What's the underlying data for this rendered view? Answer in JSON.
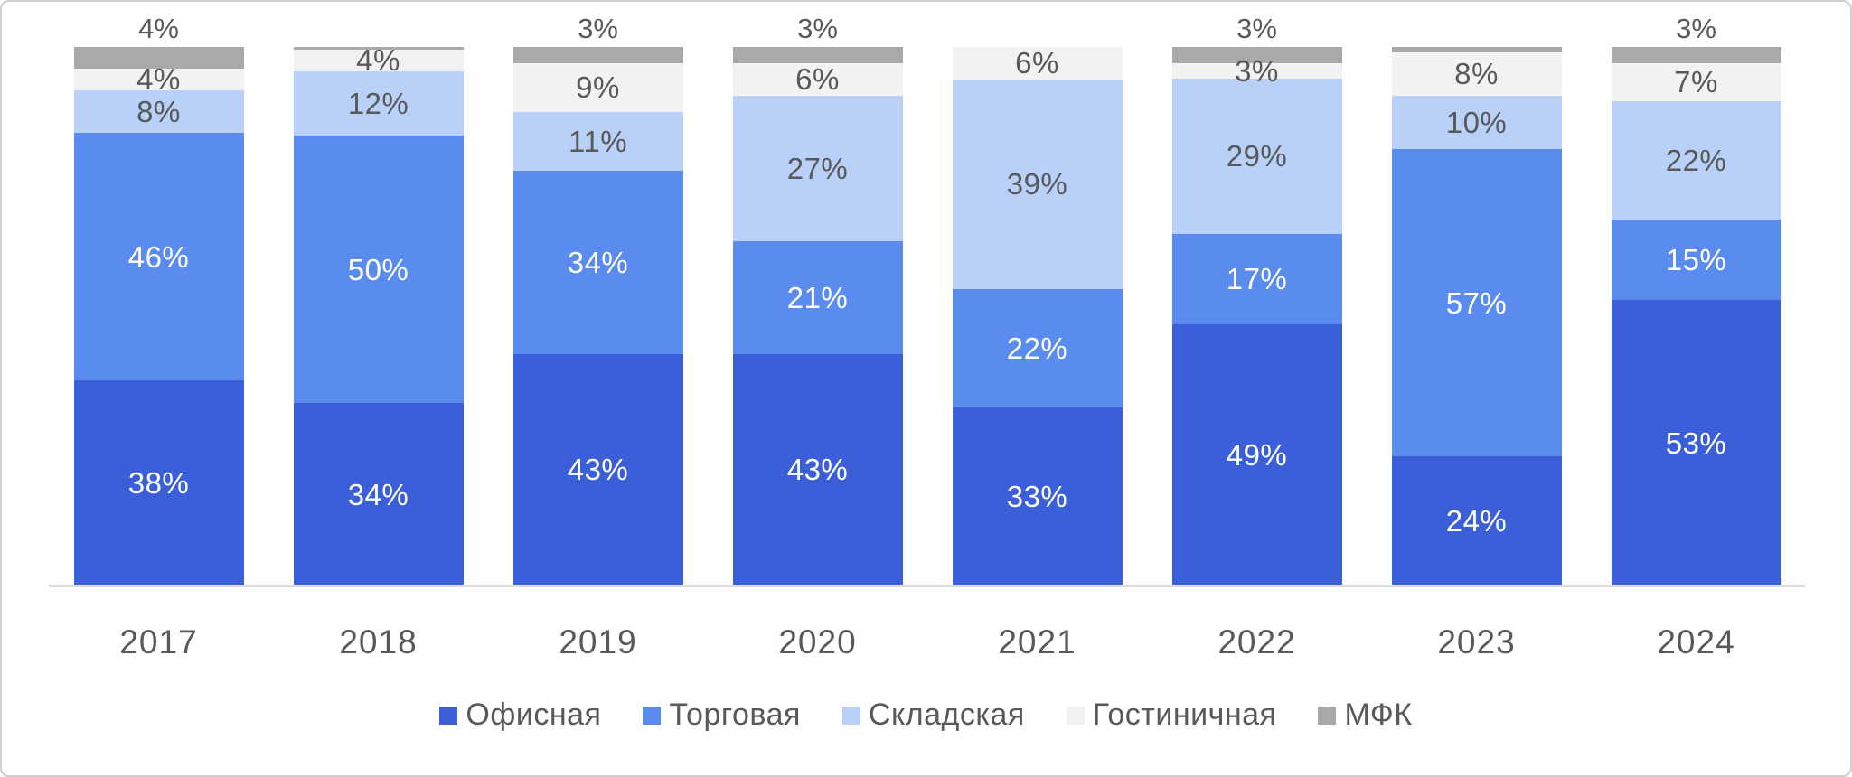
{
  "chart_data": {
    "type": "bar",
    "variant": "stacked-100-percent",
    "title": "",
    "xlabel": "",
    "ylabel": "",
    "categories": [
      "2017",
      "2018",
      "2019",
      "2020",
      "2021",
      "2022",
      "2023",
      "2024"
    ],
    "series": [
      {
        "name": "Офисная",
        "color": "#3B5FD9",
        "label_color": "#FFFFFF",
        "values": [
          38,
          34,
          43,
          43,
          33,
          49,
          24,
          53
        ]
      },
      {
        "name": "Торговая",
        "color": "#5A8CF0",
        "label_color": "#FFFFFF",
        "values": [
          46,
          50,
          34,
          21,
          22,
          17,
          57,
          15
        ]
      },
      {
        "name": "Складская",
        "color": "#B9D1F8",
        "label_color": "#595959",
        "values": [
          8,
          12,
          11,
          27,
          39,
          29,
          10,
          22
        ]
      },
      {
        "name": "Гостиничная",
        "color": "#F2F2F2",
        "label_color": "#595959",
        "values": [
          4,
          4,
          9,
          6,
          6,
          3,
          8,
          7
        ]
      },
      {
        "name": "МФК",
        "color": "#A9A9A9",
        "label_color": "#595959",
        "values": [
          4,
          0.5,
          3,
          3,
          0,
          3,
          1,
          3
        ]
      }
    ],
    "value_suffix": "%",
    "data_label_min_value": 2,
    "top_series_labels_outside": true,
    "legend_position": "bottom",
    "grid": false,
    "axis": {
      "baseline_color": "#DCDCDC",
      "tick_label_color": "#595959"
    }
  }
}
